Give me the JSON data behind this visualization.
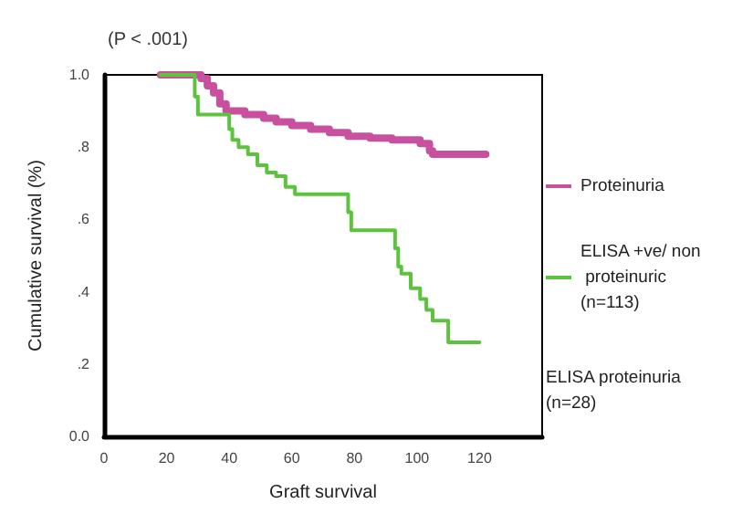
{
  "chart_data": {
    "type": "step",
    "title": "(P < .001)",
    "xlabel": "Graft survival",
    "ylabel": "Cumulative survival (%)",
    "xlim": [
      0,
      140
    ],
    "xticks": [
      0,
      20,
      40,
      60,
      80,
      100,
      120
    ],
    "ylim": [
      0,
      1
    ],
    "yticks": [
      {
        "value": 0,
        "label": "0.0"
      },
      {
        "value": 0.2,
        "label": ".2"
      },
      {
        "value": 0.4,
        "label": ".4"
      },
      {
        "value": 0.6,
        "label": ".6"
      },
      {
        "value": 0.8,
        "label": ".8"
      },
      {
        "value": 1,
        "label": "1.0"
      }
    ],
    "series": [
      {
        "name": "Proteinuria",
        "color": "#c8509e",
        "x": [
          18,
          31,
          33,
          35,
          37,
          39,
          45,
          51,
          55,
          60,
          66,
          72,
          78,
          85,
          92,
          101,
          104,
          105,
          122
        ],
        "values": [
          1.0,
          0.99,
          0.97,
          0.95,
          0.92,
          0.9,
          0.89,
          0.88,
          0.87,
          0.86,
          0.85,
          0.84,
          0.83,
          0.825,
          0.82,
          0.81,
          0.79,
          0.78,
          0.78
        ]
      },
      {
        "name": "ELISA +ve/ non proteinuric (n=113)",
        "color": "#5cc43c",
        "x": [
          18,
          29,
          30,
          40,
          41,
          43,
          46,
          49,
          52,
          55,
          58,
          61,
          78,
          79,
          93,
          94,
          95,
          98,
          101,
          103,
          105,
          110,
          120
        ],
        "values": [
          1.0,
          0.94,
          0.89,
          0.85,
          0.82,
          0.8,
          0.78,
          0.75,
          0.73,
          0.72,
          0.69,
          0.67,
          0.62,
          0.57,
          0.52,
          0.47,
          0.45,
          0.41,
          0.38,
          0.35,
          0.32,
          0.26,
          0.26
        ]
      }
    ],
    "annotations": [
      "ELISA proteinuria (n=28)"
    ],
    "legend": "right",
    "grid": false,
    "marker": "none",
    "line_style": "solid"
  }
}
